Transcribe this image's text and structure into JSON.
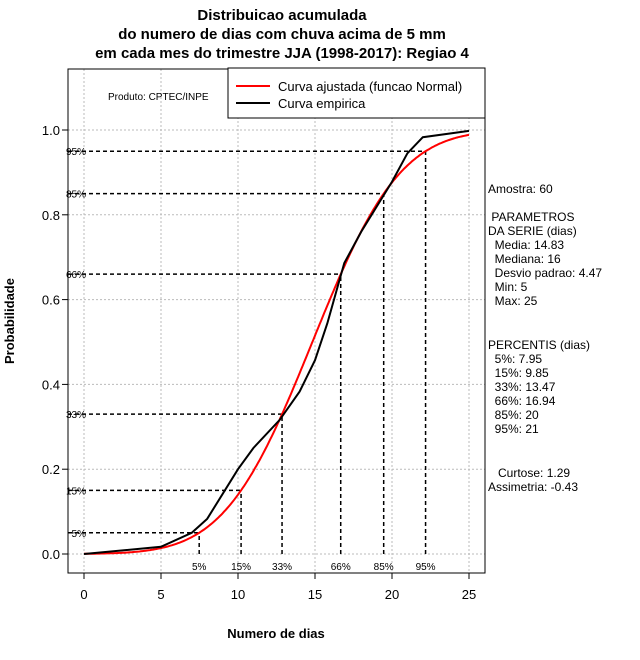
{
  "chart_data": {
    "type": "line",
    "title": [
      "Distribuicao acumulada",
      "do numero de dias com chuva acima de 5 mm",
      "em cada mes do trimestre JJA (1998-2017): Regiao 4"
    ],
    "xlabel": "Numero de dias",
    "ylabel": "Probabilidade",
    "xlim": [
      -1,
      26
    ],
    "ylim": [
      -0.045,
      1.14
    ],
    "xticks": [
      0,
      5,
      10,
      15,
      20,
      25
    ],
    "yticks": [
      0.0,
      0.2,
      0.4,
      0.6,
      0.8,
      1.0
    ],
    "ytick_labels": [
      "0.0",
      "0.2",
      "0.4",
      "0.6",
      "0.8",
      "1.0"
    ],
    "grid": true,
    "producer_note": "Produto: CPTEC/INPE",
    "legend": {
      "placement": "top-right",
      "entries": [
        {
          "label": "Curva ajustada (funcao Normal)",
          "color": "#ff0000"
        },
        {
          "label": "Curva empirica",
          "color": "#000000"
        }
      ]
    },
    "normal_fit": {
      "mean": 14.83,
      "sd": 4.47,
      "x_range": [
        0,
        25
      ]
    },
    "empirical": {
      "x": [
        0,
        5,
        7,
        8,
        10,
        11,
        12.7,
        14,
        15,
        15.8,
        16.9,
        18,
        20,
        21,
        22,
        25
      ],
      "y": [
        0,
        0.017,
        0.05,
        0.083,
        0.2,
        0.25,
        0.316,
        0.383,
        0.457,
        0.544,
        0.686,
        0.76,
        0.878,
        0.945,
        0.983,
        0.998
      ]
    },
    "percentile_guides": [
      {
        "label": "5%",
        "p": 0.05,
        "x": 7.48
      },
      {
        "label": "15%",
        "p": 0.15,
        "x": 10.2
      },
      {
        "label": "33%",
        "p": 0.33,
        "x": 12.86
      },
      {
        "label": "66%",
        "p": 0.66,
        "x": 16.67
      },
      {
        "label": "85%",
        "p": 0.85,
        "x": 19.46
      },
      {
        "label": "95%",
        "p": 0.95,
        "x": 22.18
      }
    ]
  },
  "side_panel": {
    "sample": "Amostra: 60",
    "params_title": " PARAMETROS\nDA SERIE (dias)",
    "params": [
      "  Media: 14.83",
      "  Mediana: 16",
      "  Desvio padrao: 4.47",
      "  Min: 5",
      "  Max: 25"
    ],
    "percentis_title": "PERCENTIS (dias)",
    "percentis": [
      "  5%: 7.95",
      "  15%: 9.85",
      "  33%: 13.47",
      "  66%: 16.94",
      "  85%: 20",
      "  95%: 21"
    ],
    "curtose": "   Curtose: 1.29",
    "assimetria": "Assimetria: -0.43"
  }
}
